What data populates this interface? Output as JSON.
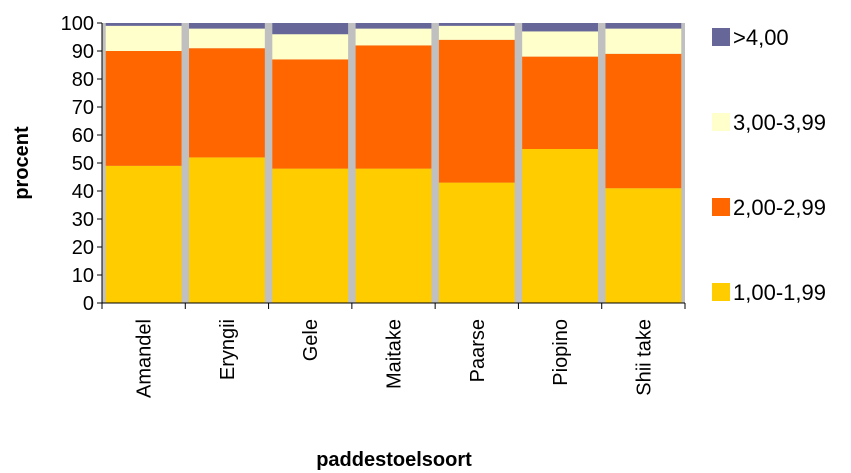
{
  "chart_data": {
    "type": "bar",
    "stacked": true,
    "categories": [
      "Amandel",
      "Eryngii",
      "Gele",
      "Maitake",
      "Paarse",
      "Piopino",
      "Shii take"
    ],
    "series": [
      {
        "name": "1,00-1,99",
        "color": "#FFCC00",
        "values": [
          49,
          52,
          48,
          48,
          43,
          55,
          41
        ]
      },
      {
        "name": "2,00-2,99",
        "color": "#FF6600",
        "values": [
          41,
          39,
          39,
          44,
          51,
          33,
          48
        ]
      },
      {
        "name": "3,00-3,99",
        "color": "#FFFFCC",
        "values": [
          9,
          7,
          9,
          6,
          5,
          9,
          9
        ]
      },
      {
        "name": ">4,00",
        "color": "#666699",
        "values": [
          1,
          2,
          4,
          2,
          1,
          3,
          2
        ]
      }
    ],
    "title": "",
    "xlabel": "paddestoelsoort",
    "ylabel": "procent",
    "ylim": [
      0,
      100
    ],
    "yticks": [
      0,
      10,
      20,
      30,
      40,
      50,
      60,
      70,
      80,
      90,
      100
    ],
    "grid": false,
    "legend_position": "right",
    "plot_background": "#C0C0C0"
  }
}
